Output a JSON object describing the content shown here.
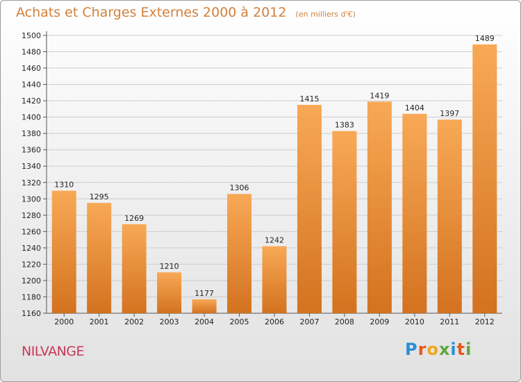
{
  "chart_data": {
    "type": "bar",
    "title": "Achats et Charges Externes 2000 à 2012",
    "subtitle": "(en milliers d'€)",
    "categories": [
      "2000",
      "2001",
      "2002",
      "2003",
      "2004",
      "2005",
      "2006",
      "2007",
      "2008",
      "2009",
      "2010",
      "2011",
      "2012"
    ],
    "values": [
      1310,
      1295,
      1269,
      1210,
      1177,
      1306,
      1242,
      1415,
      1383,
      1419,
      1404,
      1397,
      1489
    ],
    "ylim": [
      1160,
      1500
    ],
    "yticks": [
      1160,
      1180,
      1200,
      1220,
      1240,
      1260,
      1280,
      1300,
      1320,
      1340,
      1360,
      1380,
      1400,
      1420,
      1440,
      1460,
      1480,
      1500
    ],
    "grid": true,
    "colors": {
      "bar_top": "#f8a956",
      "bar_bottom": "#d3721f",
      "grid": "#cccccc"
    }
  },
  "location": "NILVANGE",
  "logo": {
    "letters": [
      "P",
      "r",
      "o",
      "x",
      "i",
      "t",
      "i"
    ],
    "colors": [
      "#2a8fd6",
      "#e9581c",
      "#f0a81a",
      "#5aa83c",
      "#2a8fd6",
      "#e9581c",
      "#5aa83c"
    ]
  }
}
